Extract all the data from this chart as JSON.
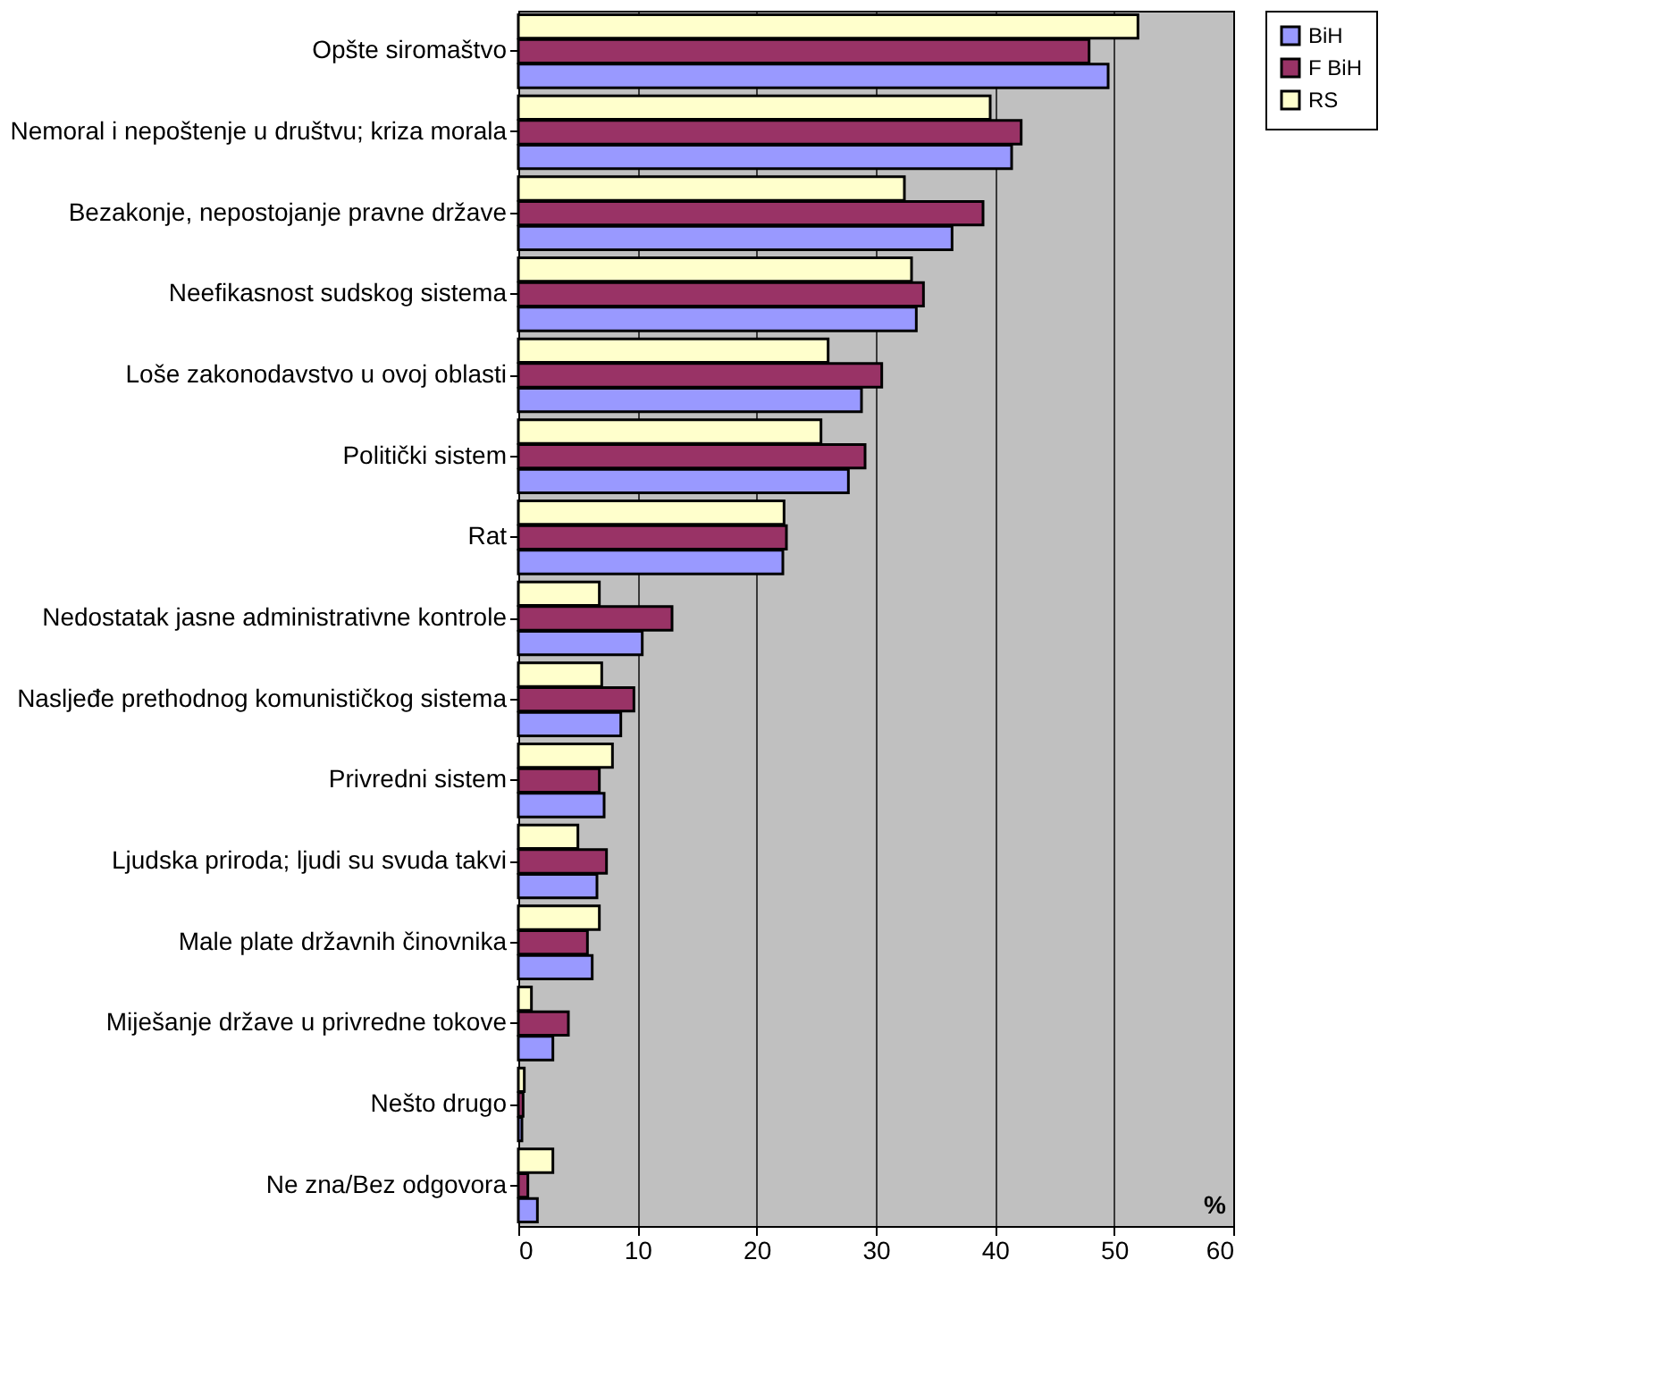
{
  "chart_data": {
    "type": "bar",
    "orientation": "horizontal",
    "categories": [
      "Opšte siromaštvo",
      "Nemoral i nepoštenje u društvu; kriza morala",
      "Bezakonje, nepostojanje pravne države",
      "Neefikasnost sudskog sistema",
      "Loše zakonodavstvo u ovoj oblasti",
      "Politički sistem",
      "Rat",
      "Nedostatak jasne administrativne kontrole",
      "Nasljeđe prethodnog komunističkog sistema",
      "Privredni sistem",
      "Ljudska priroda; ljudi su svuda takvi",
      "Male plate državnih činovnika",
      "Miješanje države u privredne tokove",
      "Nešto drugo",
      "Ne zna/Bez odgovora"
    ],
    "series": [
      {
        "name": "BiH",
        "color": "#9999ff",
        "values": [
          49.5,
          41.4,
          36.4,
          33.4,
          28.8,
          27.7,
          22.2,
          10.4,
          8.6,
          7.2,
          6.6,
          6.2,
          2.9,
          0.3,
          1.6
        ]
      },
      {
        "name": "F BiH",
        "color": "#993366",
        "values": [
          47.9,
          42.2,
          39.0,
          34.0,
          30.5,
          29.1,
          22.5,
          12.9,
          9.7,
          6.8,
          7.4,
          5.8,
          4.2,
          0.4,
          0.8
        ]
      },
      {
        "name": "RS",
        "color": "#ffffcc",
        "values": [
          52.0,
          39.6,
          32.4,
          33.0,
          26.0,
          25.4,
          22.3,
          6.8,
          7.0,
          7.9,
          5.0,
          6.8,
          1.1,
          0.5,
          2.9
        ]
      }
    ],
    "xlim": [
      0,
      60
    ],
    "xticks": [
      0,
      10,
      20,
      30,
      40,
      50,
      60
    ],
    "grid": "x",
    "legend": "right",
    "annotations": [
      "%"
    ]
  }
}
